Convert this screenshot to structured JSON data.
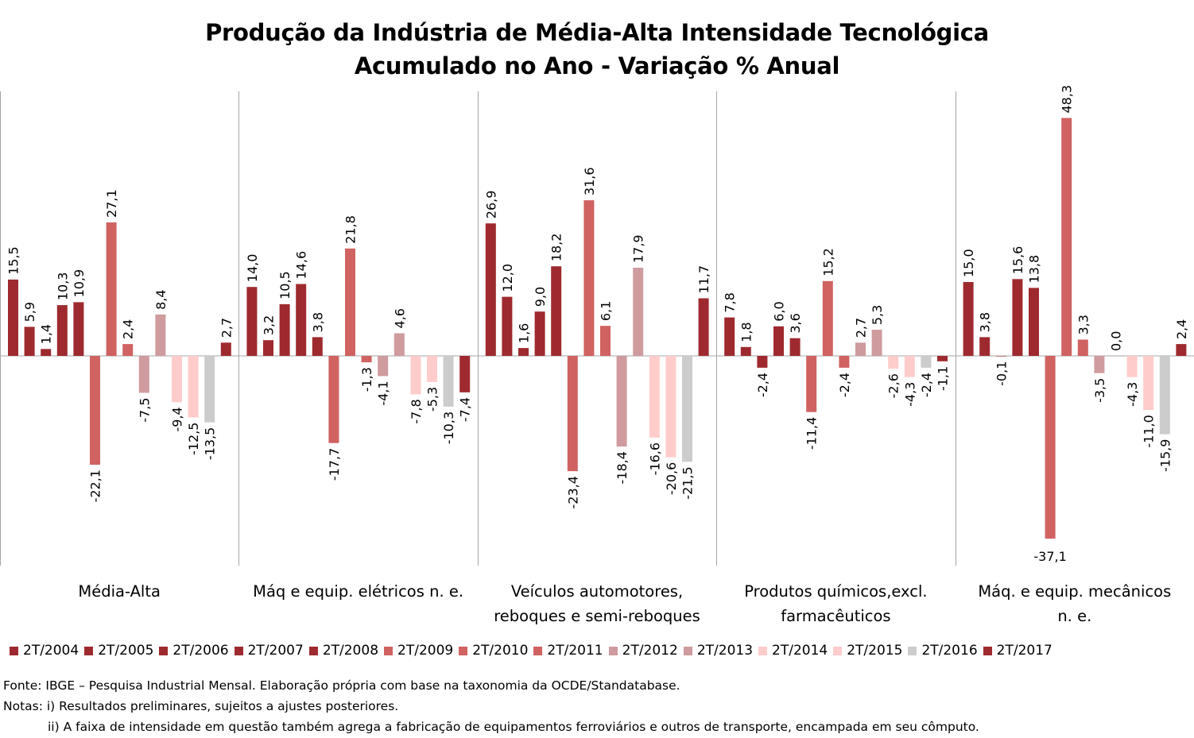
{
  "chart_data": {
    "type": "bar",
    "title": "Produção da Indústria de Média-Alta Intensidade Tecnológica",
    "subtitle": "Acumulado no Ano - Variação % Anual",
    "categories": [
      "Média-Alta",
      "Máq e equip. elétricos n. e.",
      "Veículos automotores, reboques e semi-reboques",
      "Produtos químicos,excl. farmacêuticos",
      "Máq. e equip. mecânicos n. e."
    ],
    "category_lines": [
      [
        "Média-Alta"
      ],
      [
        "Máq e equip. elétricos n. e."
      ],
      [
        "Veículos automotores,",
        "reboques e semi-reboques"
      ],
      [
        "Produtos químicos,excl.",
        "farmacêuticos"
      ],
      [
        "Máq. e equip. mecânicos",
        "n. e."
      ]
    ],
    "series": [
      {
        "name": "2T/2004",
        "color": "#9e2a2f",
        "values": [
          15.5,
          14.0,
          26.9,
          7.8,
          15.0
        ],
        "labels": [
          "15,5",
          "14,0",
          "26,9",
          "7,8",
          "15,0"
        ]
      },
      {
        "name": "2T/2005",
        "color": "#9e2a2f",
        "values": [
          5.9,
          3.2,
          12.0,
          1.8,
          3.8
        ],
        "labels": [
          "5,9",
          "3,2",
          "12,0",
          "1,8",
          "3,8"
        ]
      },
      {
        "name": "2T/2006",
        "color": "#9e2a2f",
        "values": [
          1.4,
          10.5,
          1.6,
          -2.4,
          -0.1
        ],
        "labels": [
          "1,4",
          "10,5",
          "1,6",
          "-2,4",
          "-0,1"
        ]
      },
      {
        "name": "2T/2007",
        "color": "#9e2a2f",
        "values": [
          10.3,
          14.6,
          9.0,
          6.0,
          15.6
        ],
        "labels": [
          "10,3",
          "14,6",
          "9,0",
          "6,0",
          "15,6"
        ]
      },
      {
        "name": "2T/2008",
        "color": "#9e2a2f",
        "values": [
          10.9,
          3.8,
          18.2,
          3.6,
          13.8
        ],
        "labels": [
          "10,9",
          "3,8",
          "18,2",
          "3,6",
          "13,8"
        ]
      },
      {
        "name": "2T/2009",
        "color": "#d06262",
        "values": [
          -22.1,
          -17.7,
          -23.4,
          -11.4,
          -37.1
        ],
        "labels": [
          "-22,1",
          "-17,7",
          "-23,4",
          "-11,4",
          "-37,1"
        ]
      },
      {
        "name": "2T/2010",
        "color": "#d06262",
        "values": [
          27.1,
          21.8,
          31.6,
          15.2,
          48.3
        ],
        "labels": [
          "27,1",
          "21,8",
          "31,6",
          "15,2",
          "48,3"
        ]
      },
      {
        "name": "2T/2011",
        "color": "#d06262",
        "values": [
          2.4,
          -1.3,
          6.1,
          -2.4,
          3.3
        ],
        "labels": [
          "2,4",
          "-1,3",
          "6,1",
          "-2,4",
          "3,3"
        ]
      },
      {
        "name": "2T/2012",
        "color": "#cf9b9e",
        "values": [
          -7.5,
          -4.1,
          -18.4,
          2.7,
          -3.5
        ],
        "labels": [
          "-7,5",
          "-4,1",
          "-18,4",
          "2,7",
          "-3,5"
        ]
      },
      {
        "name": "2T/2013",
        "color": "#cf9b9e",
        "values": [
          8.4,
          4.6,
          17.9,
          5.3,
          0.0
        ],
        "labels": [
          "8,4",
          "4,6",
          "17,9",
          "5,3",
          "0,0"
        ]
      },
      {
        "name": "2T/2014",
        "color": "#ffcccc",
        "values": [
          -9.4,
          -7.8,
          -16.6,
          -2.6,
          -4.3
        ],
        "labels": [
          "-9,4",
          "-7,8",
          "-16,6",
          "-2,6",
          "-4,3"
        ]
      },
      {
        "name": "2T/2015",
        "color": "#ffcccc",
        "values": [
          -12.5,
          -5.3,
          -20.6,
          -4.3,
          -11.0
        ],
        "labels": [
          "-12,5",
          "-5,3",
          "-20,6",
          "-4,3",
          "-11,0"
        ]
      },
      {
        "name": "2T/2016",
        "color": "#cccccc",
        "values": [
          -13.5,
          -10.3,
          -21.5,
          -2.4,
          -15.9
        ],
        "labels": [
          "-13,5",
          "-10,3",
          "-21,5",
          "-2,4",
          "-15,9"
        ]
      },
      {
        "name": "2T/2017",
        "color": "#9e2a2f",
        "values": [
          2.7,
          -7.4,
          11.7,
          -1.1,
          2.4
        ],
        "labels": [
          "2,7",
          "-7,4",
          "11,7",
          "-1,1",
          "2,4"
        ]
      }
    ],
    "legend_position": "bottom",
    "grid": false
  },
  "notes": {
    "source": "Fonte: IBGE – Pesquisa Industrial Mensal. Elaboração própria com base na taxonomia da OCDE/Standatabase.",
    "note1": "Notas: i) Resultados preliminares, sujeitos a ajustes posteriores.",
    "note2": "ii) A faixa de intensidade em questão também agrega a fabricação de equipamentos ferroviários e outros de transporte, encampada em seu cômputo."
  }
}
